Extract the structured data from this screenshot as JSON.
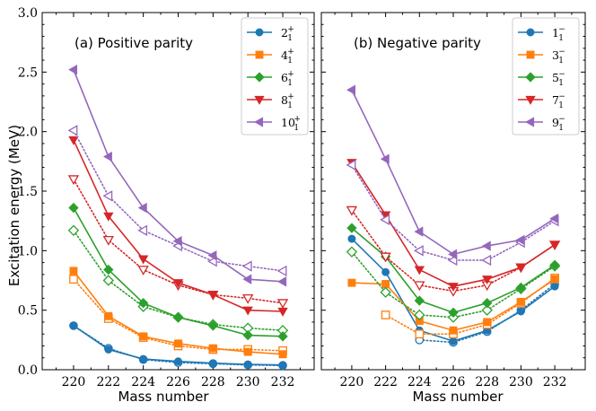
{
  "figure": {
    "ylabel": "Excitation energy (MeV)",
    "xlabel": "Mass number"
  },
  "chart_data": [
    {
      "type": "line",
      "title": "(a) Positive parity",
      "xlabel": "Mass number",
      "ylabel": "Excitation energy (MeV)",
      "x": [
        220,
        222,
        224,
        226,
        228,
        230,
        232
      ],
      "xticks": [
        "220",
        "222",
        "224",
        "226",
        "228",
        "230",
        "232"
      ],
      "xlim": [
        218.2,
        233.8
      ],
      "ylim": [
        0.0,
        3.0
      ],
      "yticks": [
        "0.0",
        "0.5",
        "1.0",
        "1.5",
        "2.0",
        "2.5",
        "3.0"
      ],
      "legend_position": "top-right",
      "series": [
        {
          "name": "2",
          "sup": "+",
          "sub": "1",
          "color": "#1f77b4",
          "marker": "circle",
          "solid": [
            0.37,
            0.17,
            0.09,
            0.07,
            0.055,
            0.045,
            0.04
          ],
          "dotted": [
            0.37,
            0.18,
            0.085,
            0.06,
            0.05,
            0.04,
            0.035
          ]
        },
        {
          "name": "4",
          "sup": "+",
          "sub": "1",
          "color": "#ff7f0e",
          "marker": "square",
          "solid": [
            0.83,
            0.45,
            0.28,
            0.22,
            0.18,
            0.15,
            0.13
          ],
          "dotted": [
            0.76,
            0.43,
            0.27,
            0.2,
            0.17,
            0.17,
            0.16
          ]
        },
        {
          "name": "6",
          "sup": "+",
          "sub": "1",
          "color": "#2ca02c",
          "marker": "diamond",
          "solid": [
            1.36,
            0.84,
            0.56,
            0.44,
            0.37,
            0.29,
            0.28
          ],
          "dotted": [
            1.17,
            0.75,
            0.53,
            0.44,
            0.38,
            0.35,
            0.33
          ]
        },
        {
          "name": "8",
          "sup": "+",
          "sub": "1",
          "color": "#d62728",
          "marker": "triangle-down",
          "solid": [
            1.93,
            1.29,
            0.93,
            0.73,
            0.63,
            0.5,
            0.49
          ],
          "dotted": [
            1.6,
            1.09,
            0.84,
            0.71,
            0.63,
            0.6,
            0.56
          ]
        },
        {
          "name": "10",
          "sup": "+",
          "sub": "1",
          "color": "#9467bd",
          "marker": "triangle-left",
          "solid": [
            2.52,
            1.79,
            1.36,
            1.08,
            0.96,
            0.76,
            0.74
          ],
          "dotted": [
            2.01,
            1.46,
            1.17,
            1.04,
            0.91,
            0.87,
            0.83
          ]
        }
      ]
    },
    {
      "type": "line",
      "title": "(b) Negative parity",
      "xlabel": "Mass number",
      "ylabel": "Excitation energy (MeV)",
      "x": [
        220,
        222,
        224,
        226,
        228,
        230,
        232
      ],
      "xticks": [
        "220",
        "222",
        "224",
        "226",
        "228",
        "230",
        "232"
      ],
      "xlim": [
        218.2,
        233.8
      ],
      "ylim": [
        0.0,
        3.0
      ],
      "yticks": [
        "0.0",
        "0.5",
        "1.0",
        "1.5",
        "2.0",
        "2.5",
        "3.0"
      ],
      "legend_position": "top-right",
      "series": [
        {
          "name": "1",
          "sup": "−",
          "sub": "1",
          "color": "#1f77b4",
          "marker": "circle",
          "solid": [
            1.1,
            0.82,
            0.33,
            0.24,
            0.33,
            0.49,
            0.7
          ],
          "dotted": [
            null,
            null,
            0.25,
            0.23,
            0.32,
            0.5,
            0.72
          ]
        },
        {
          "name": "3",
          "sup": "−",
          "sub": "1",
          "color": "#ff7f0e",
          "marker": "square",
          "solid": [
            0.73,
            0.72,
            0.41,
            0.33,
            0.4,
            0.57,
            0.76
          ],
          "dotted": [
            null,
            0.46,
            0.3,
            0.3,
            0.38,
            0.56,
            0.77
          ]
        },
        {
          "name": "5",
          "sup": "−",
          "sub": "1",
          "color": "#2ca02c",
          "marker": "diamond",
          "solid": [
            1.19,
            0.95,
            0.58,
            0.48,
            0.56,
            0.69,
            0.88
          ],
          "dotted": [
            0.99,
            0.65,
            0.46,
            0.44,
            0.5,
            0.68,
            0.87
          ]
        },
        {
          "name": "7",
          "sup": "−",
          "sub": "1",
          "color": "#d62728",
          "marker": "triangle-down",
          "solid": [
            1.74,
            1.3,
            0.84,
            0.7,
            0.76,
            0.86,
            1.05
          ],
          "dotted": [
            1.34,
            0.95,
            0.71,
            0.66,
            0.71,
            0.86,
            1.05
          ]
        },
        {
          "name": "9",
          "sup": "−",
          "sub": "1",
          "color": "#9467bd",
          "marker": "triangle-left",
          "solid": [
            2.35,
            1.77,
            1.16,
            0.97,
            1.04,
            1.09,
            1.27
          ],
          "dotted": [
            1.72,
            1.26,
            1.0,
            0.92,
            0.92,
            1.07,
            1.25
          ]
        }
      ]
    }
  ]
}
